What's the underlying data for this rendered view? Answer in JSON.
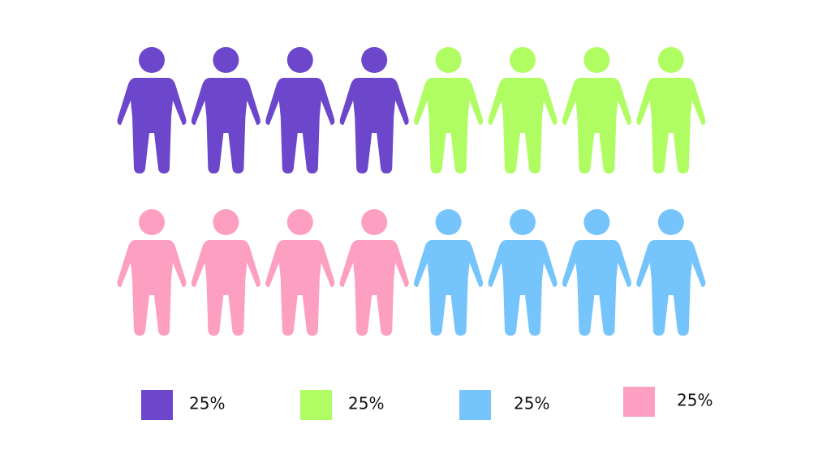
{
  "chart_data": {
    "type": "pictograph",
    "values": [
      25,
      25,
      25,
      25
    ],
    "value_labels": [
      "25%",
      "25%",
      "25%",
      "25%"
    ],
    "colors": [
      "#6c47cb",
      "#b0fc63",
      "#76c4fc",
      "#fd9fc1"
    ]
  }
}
